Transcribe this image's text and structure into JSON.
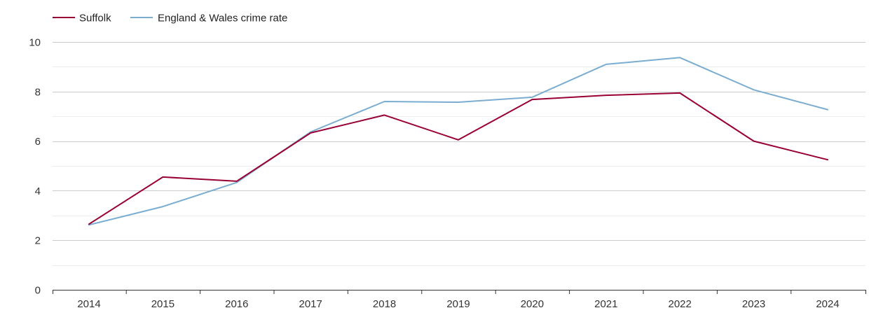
{
  "chart_data": {
    "type": "line",
    "title": "",
    "xlabel": "",
    "ylabel": "",
    "categories": [
      "2014",
      "2015",
      "2016",
      "2017",
      "2018",
      "2019",
      "2020",
      "2021",
      "2022",
      "2023",
      "2024"
    ],
    "ylim": [
      0,
      10
    ],
    "y_ticks": [
      "0",
      "2",
      "4",
      "6",
      "8",
      "10"
    ],
    "grid": true,
    "legend_position": "top-left",
    "series": [
      {
        "name": "Suffolk",
        "color": "#990033",
        "values": [
          2.65,
          4.55,
          4.38,
          6.33,
          7.05,
          6.05,
          7.68,
          7.85,
          7.94,
          6.0,
          5.25
        ]
      },
      {
        "name": "England & Wales crime rate",
        "color": "#7aadd0",
        "values": [
          2.62,
          3.36,
          4.33,
          6.37,
          7.6,
          7.57,
          7.77,
          9.1,
          9.37,
          8.07,
          7.27
        ]
      }
    ]
  }
}
